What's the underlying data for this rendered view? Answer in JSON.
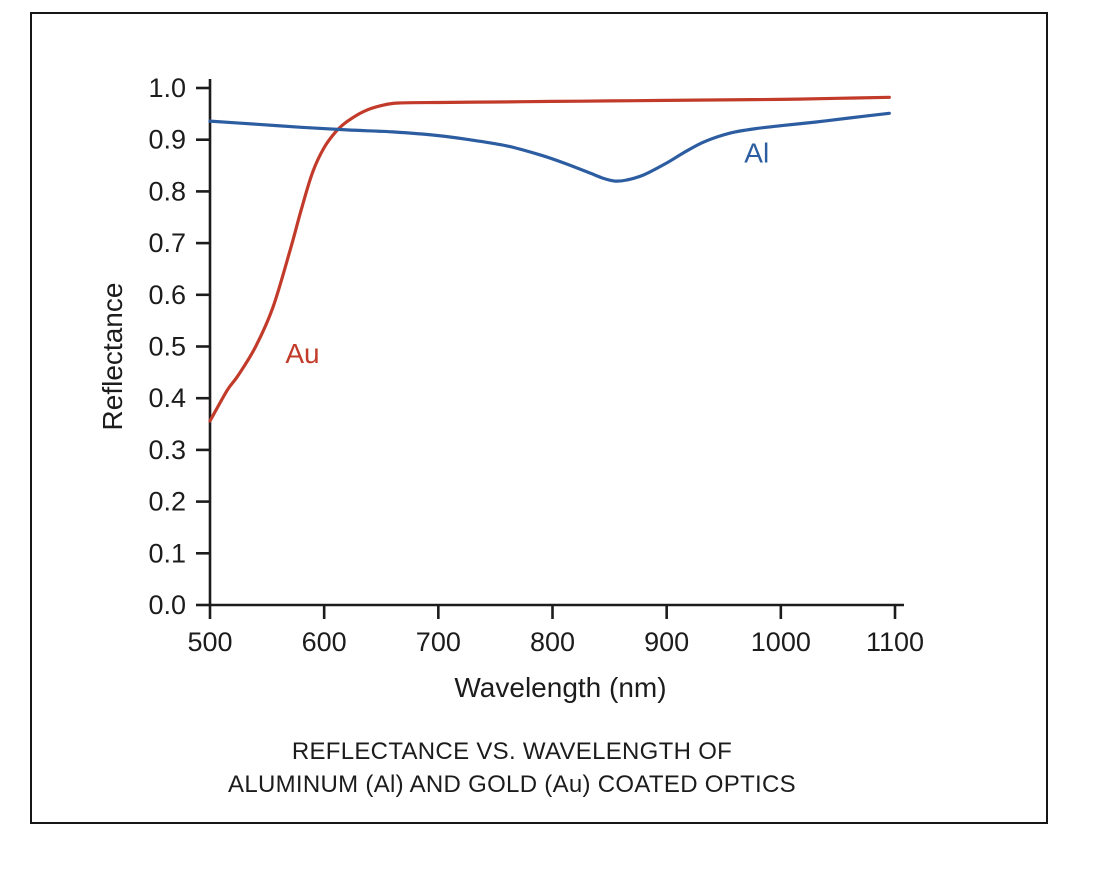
{
  "chart_data": {
    "type": "line",
    "title": "",
    "xlabel": "Wavelength (nm)",
    "ylabel": "Reflectance",
    "xlim": [
      500,
      1100
    ],
    "ylim": [
      0.0,
      1.0
    ],
    "grid": false,
    "legend": "inline-labels",
    "axis_color": "#1c1c1c",
    "x_ticks": [
      500,
      600,
      700,
      800,
      900,
      1000,
      1100
    ],
    "x_tick_labels": [
      "500",
      "600",
      "700",
      "800",
      "900",
      "1000",
      "1100"
    ],
    "y_ticks": [
      0.0,
      0.1,
      0.2,
      0.3,
      0.4,
      0.5,
      0.6,
      0.7,
      0.8,
      0.9,
      1.0
    ],
    "y_tick_labels": [
      "0.0",
      "0.1",
      "0.2",
      "0.3",
      "0.4",
      "0.5",
      "0.6",
      "0.7",
      "0.8",
      "0.9",
      "1.0"
    ],
    "caption_lines": [
      "REFLECTANCE VS. WAVELENGTH OF",
      "ALUMINUM (Al) AND GOLD (Au) COATED OPTICS"
    ],
    "series": [
      {
        "name": "Au",
        "color": "#c23b2a",
        "label_x": 566,
        "label_y": 0.468,
        "x": [
          500,
          515,
          525,
          540,
          555,
          570,
          580,
          590,
          600,
          610,
          620,
          635,
          650,
          665,
          700,
          750,
          800,
          850,
          900,
          950,
          1000,
          1050,
          1095
        ],
        "values": [
          0.356,
          0.415,
          0.445,
          0.5,
          0.575,
          0.685,
          0.765,
          0.838,
          0.885,
          0.915,
          0.935,
          0.955,
          0.966,
          0.971,
          0.972,
          0.973,
          0.974,
          0.975,
          0.976,
          0.977,
          0.978,
          0.98,
          0.982
        ]
      },
      {
        "name": "Al",
        "color": "#2d5da1",
        "label_x": 968,
        "label_y": 0.856,
        "x": [
          500,
          540,
          580,
          620,
          660,
          700,
          730,
          760,
          790,
          810,
          830,
          845,
          855,
          865,
          880,
          900,
          915,
          930,
          945,
          960,
          980,
          1000,
          1030,
          1060,
          1095
        ],
        "values": [
          0.936,
          0.93,
          0.924,
          0.919,
          0.915,
          0.908,
          0.899,
          0.888,
          0.87,
          0.855,
          0.838,
          0.825,
          0.82,
          0.822,
          0.832,
          0.855,
          0.875,
          0.893,
          0.906,
          0.915,
          0.922,
          0.927,
          0.934,
          0.942,
          0.951
        ]
      }
    ]
  }
}
